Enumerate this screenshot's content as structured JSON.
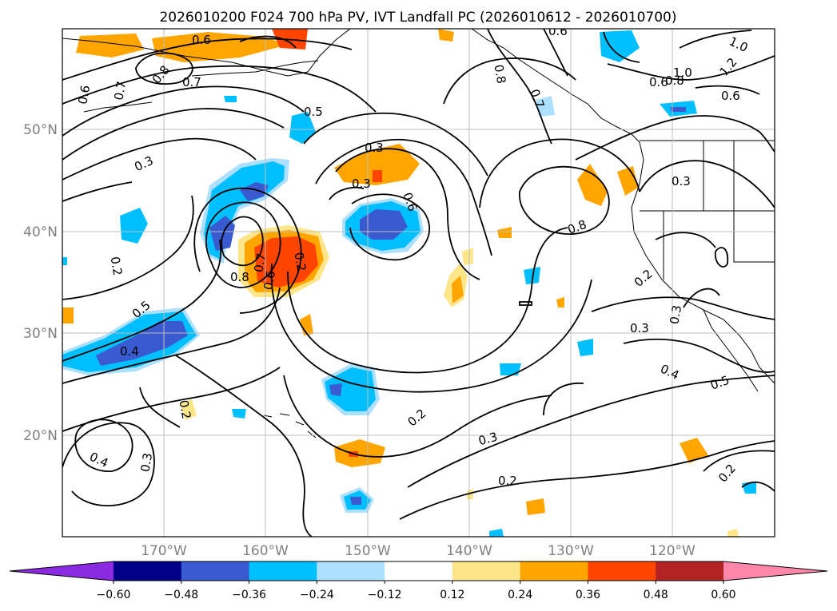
{
  "title": "2026010200 F024 700 hPa PV, IVT Landfall PC (2026010612 - 2026010700)",
  "lat_labels": [
    "50°N",
    "40°N",
    "30°N",
    "20°N"
  ],
  "lon_labels": [
    "170°W",
    "160°W",
    "150°W",
    "140°W",
    "130°W",
    "120°W"
  ],
  "colorbar": {
    "colors": [
      "#8a2be2",
      "#00008b",
      "#3a5bd0",
      "#00bfff",
      "#addfff",
      "#ffffff",
      "#fde68a",
      "#ffa500",
      "#ff4500",
      "#b22222",
      "#ff88aa"
    ],
    "ticks": [
      "−0.60",
      "−0.48",
      "−0.36",
      "−0.24",
      "−0.12",
      "0.12",
      "0.24",
      "0.36",
      "0.48",
      "0.60"
    ]
  },
  "contour_labels": [
    "0.6",
    "0.7",
    "0.8",
    "0.6",
    "0.7",
    "0.5",
    "0.3",
    "0.3",
    "0.2",
    "0.5",
    "0.4",
    "0.8",
    "0.7",
    "0.6",
    "0.2",
    "0.3",
    "0.6",
    "0.8",
    "0.2",
    "0.3",
    "0.2",
    "0.8",
    "0.6",
    "0.7",
    "0.6",
    "1.0",
    "0.8",
    "1.2",
    "1.0",
    "0.6",
    "0.3",
    "0.2",
    "0.3",
    "0.3",
    "0.4",
    "0.5",
    "0.2",
    "0.4",
    "0.3",
    "0.2"
  ]
}
